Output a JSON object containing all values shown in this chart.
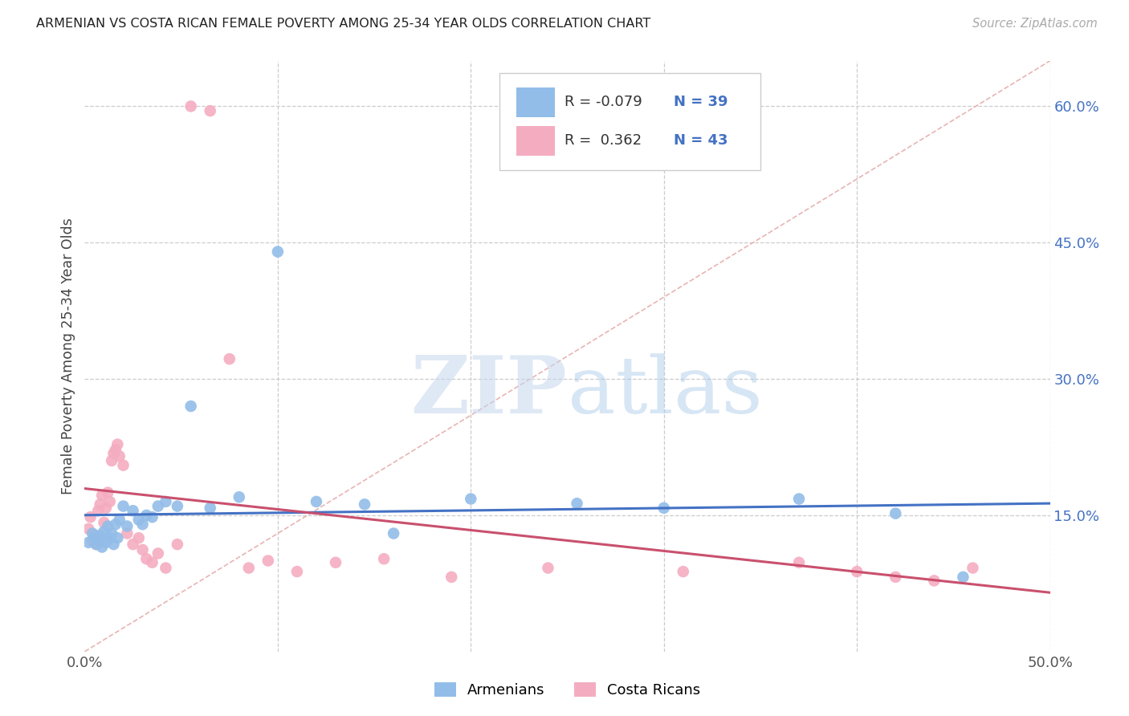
{
  "title": "ARMENIAN VS COSTA RICAN FEMALE POVERTY AMONG 25-34 YEAR OLDS CORRELATION CHART",
  "source": "Source: ZipAtlas.com",
  "ylabel": "Female Poverty Among 25-34 Year Olds",
  "xlim": [
    0,
    0.5
  ],
  "ylim": [
    0,
    0.65
  ],
  "ytick_right_labels": [
    "60.0%",
    "45.0%",
    "30.0%",
    "15.0%"
  ],
  "ytick_right_values": [
    0.6,
    0.45,
    0.3,
    0.15
  ],
  "background_color": "#ffffff",
  "grid_color": "#cccccc",
  "watermark_zip": "ZIP",
  "watermark_atlas": "atlas",
  "legend_armenian_r": "-0.079",
  "legend_armenian_n": "39",
  "legend_costarican_r": "0.362",
  "legend_costarican_n": "43",
  "armenian_color": "#92bde8",
  "costarican_color": "#f4adc0",
  "armenian_line_color": "#4472c4",
  "costarican_line_color": "#c9506e",
  "diagonal_color": "#e8b4b4",
  "armenian_x": [
    0.002,
    0.004,
    0.005,
    0.006,
    0.007,
    0.008,
    0.009,
    0.01,
    0.011,
    0.012,
    0.013,
    0.014,
    0.015,
    0.016,
    0.017,
    0.018,
    0.02,
    0.022,
    0.025,
    0.028,
    0.03,
    0.032,
    0.035,
    0.038,
    0.042,
    0.048,
    0.055,
    0.065,
    0.08,
    0.1,
    0.12,
    0.145,
    0.16,
    0.2,
    0.255,
    0.3,
    0.37,
    0.42,
    0.455
  ],
  "armenian_y": [
    0.12,
    0.13,
    0.125,
    0.118,
    0.122,
    0.128,
    0.115,
    0.132,
    0.12,
    0.138,
    0.125,
    0.13,
    0.118,
    0.14,
    0.125,
    0.145,
    0.16,
    0.138,
    0.155,
    0.145,
    0.14,
    0.15,
    0.148,
    0.16,
    0.165,
    0.16,
    0.27,
    0.158,
    0.17,
    0.44,
    0.165,
    0.162,
    0.13,
    0.168,
    0.163,
    0.158,
    0.168,
    0.152,
    0.082
  ],
  "costarican_x": [
    0.002,
    0.003,
    0.004,
    0.005,
    0.006,
    0.007,
    0.008,
    0.009,
    0.01,
    0.011,
    0.012,
    0.013,
    0.014,
    0.015,
    0.016,
    0.017,
    0.018,
    0.02,
    0.022,
    0.025,
    0.028,
    0.03,
    0.032,
    0.035,
    0.038,
    0.042,
    0.048,
    0.055,
    0.065,
    0.075,
    0.085,
    0.095,
    0.11,
    0.13,
    0.155,
    0.19,
    0.24,
    0.31,
    0.37,
    0.4,
    0.42,
    0.44,
    0.46
  ],
  "costarican_y": [
    0.135,
    0.148,
    0.122,
    0.128,
    0.118,
    0.155,
    0.162,
    0.172,
    0.142,
    0.158,
    0.175,
    0.165,
    0.21,
    0.218,
    0.222,
    0.228,
    0.215,
    0.205,
    0.13,
    0.118,
    0.125,
    0.112,
    0.102,
    0.098,
    0.108,
    0.092,
    0.118,
    0.6,
    0.595,
    0.322,
    0.092,
    0.1,
    0.088,
    0.098,
    0.102,
    0.082,
    0.092,
    0.088,
    0.098,
    0.088,
    0.082,
    0.078,
    0.092
  ]
}
